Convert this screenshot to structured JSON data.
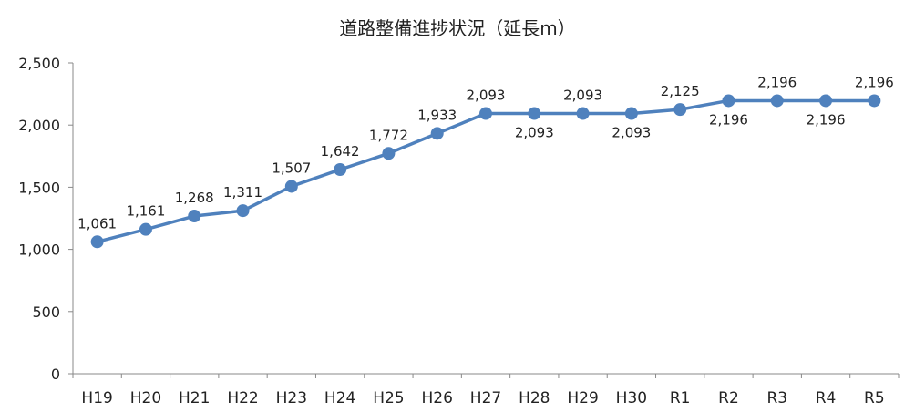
{
  "chart_data": {
    "type": "line",
    "title": "道路整備進捗状況（延長m）",
    "xlabel": "",
    "ylabel": "",
    "categories": [
      "H19",
      "H20",
      "H21",
      "H22",
      "H23",
      "H24",
      "H25",
      "H26",
      "H27",
      "H28",
      "H29",
      "H30",
      "R1",
      "R2",
      "R3",
      "R4",
      "R5"
    ],
    "values": [
      1061,
      1161,
      1268,
      1311,
      1507,
      1642,
      1772,
      1933,
      2093,
      2093,
      2093,
      2093,
      2125,
      2196,
      2196,
      2196,
      2196
    ],
    "data_labels": [
      "1,061",
      "1,161",
      "1,268",
      "1,311",
      "1,507",
      "1,642",
      "1,772",
      "1,933",
      "2,093",
      "2,093",
      "2,093",
      "2,093",
      "2,125",
      "2,196",
      "2,196",
      "2,196",
      "2,196"
    ],
    "label_positions": [
      "above",
      "above",
      "above",
      "above",
      "above",
      "above",
      "above",
      "above",
      "above",
      "below",
      "above",
      "below",
      "above",
      "below",
      "above",
      "below",
      "above"
    ],
    "ylim": [
      0,
      2500
    ],
    "yticks": [
      0,
      500,
      1000,
      1500,
      2000,
      2500
    ],
    "ytick_labels": [
      "0",
      "500",
      "1,000",
      "1,500",
      "2,000",
      "2,500"
    ],
    "grid": false,
    "legend": "none",
    "colors": {
      "line": "#4f81bd",
      "axis": "#898989",
      "text": "#222222"
    }
  }
}
